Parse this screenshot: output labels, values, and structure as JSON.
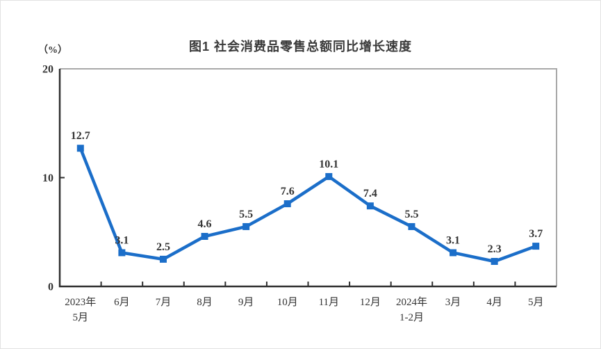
{
  "chart": {
    "title": "图1  社会消费品零售总额同比增长速度",
    "unit_label": "（%）"
  },
  "chart_data": {
    "type": "line",
    "title": "图1  社会消费品零售总额同比增长速度",
    "ylabel": "（%）",
    "xlabel": "",
    "categories": [
      [
        "2023年",
        "5月"
      ],
      [
        "6月"
      ],
      [
        "7月"
      ],
      [
        "8月"
      ],
      [
        "9月"
      ],
      [
        "10月"
      ],
      [
        "11月"
      ],
      [
        "12月"
      ],
      [
        "2024年",
        "1-2月"
      ],
      [
        "3月"
      ],
      [
        "4月"
      ],
      [
        "5月"
      ]
    ],
    "values": [
      12.7,
      3.1,
      2.5,
      4.6,
      5.5,
      7.6,
      10.1,
      7.4,
      5.5,
      3.1,
      2.3,
      3.7
    ],
    "ylim": [
      0,
      20
    ],
    "yticks": [
      0,
      10,
      20
    ],
    "grid": false,
    "legend": "none",
    "line_color": "#1b6ec9",
    "marker": "square",
    "axis_color": "#2f2f2f",
    "border_color": "#a8a8a8",
    "label_color": "#333333"
  }
}
